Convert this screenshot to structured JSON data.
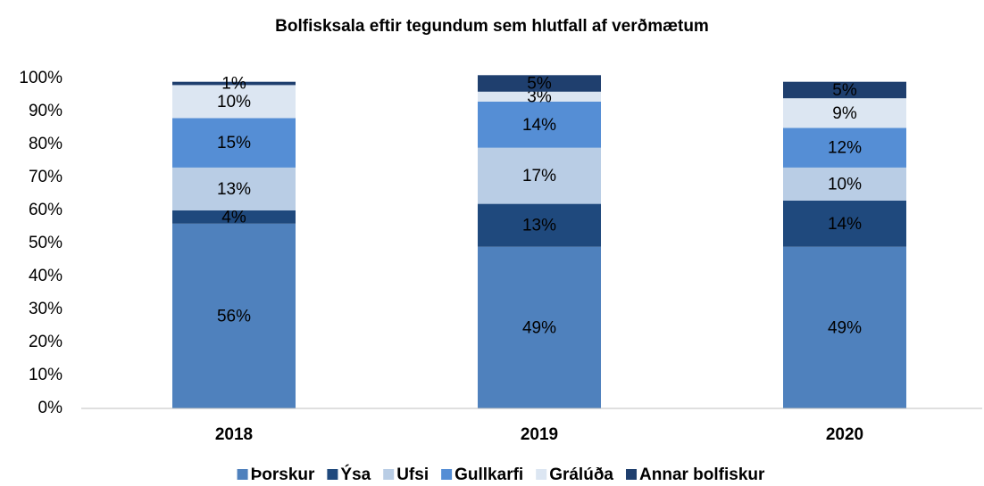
{
  "chart_data": {
    "type": "bar",
    "stacked": true,
    "title": "Bolfisksala eftir tegundum sem hlutfall af verðmætum",
    "categories": [
      "2018",
      "2019",
      "2020"
    ],
    "series": [
      {
        "name": "Þorskur",
        "color": "#4f81bd",
        "label_color": "#ffffff",
        "values": [
          56,
          49,
          49
        ],
        "value_labels": [
          "56%",
          "49%",
          "49%"
        ]
      },
      {
        "name": "Ýsa",
        "color": "#1f497d",
        "label_color": "#ffffff",
        "values": [
          4,
          13,
          14
        ],
        "value_labels": [
          "4%",
          "13%",
          "14%"
        ]
      },
      {
        "name": "Ufsi",
        "color": "#b9cde5",
        "label_color": "#000000",
        "values": [
          13,
          17,
          10
        ],
        "value_labels": [
          "13%",
          "17%",
          "10%"
        ]
      },
      {
        "name": "Gullkarfi",
        "color": "#558ed5",
        "label_color": "#000000",
        "values": [
          15,
          14,
          12
        ],
        "value_labels": [
          "15%",
          "14%",
          "12%"
        ]
      },
      {
        "name": "Grálúða",
        "color": "#dce6f2",
        "label_color": "#000000",
        "values": [
          10,
          3,
          9
        ],
        "value_labels": [
          "10%",
          "3%",
          "9%"
        ]
      },
      {
        "name": "Annar bolfiskur",
        "color": "#1f3f6e",
        "label_color": "#ffffff",
        "values": [
          1,
          5,
          5
        ],
        "value_labels": [
          "1%",
          "5%",
          "5%"
        ]
      }
    ],
    "ylim": [
      0,
      100
    ],
    "yticks": [
      {
        "value": 0,
        "label": "0%"
      },
      {
        "value": 10,
        "label": "10%"
      },
      {
        "value": 20,
        "label": "20%"
      },
      {
        "value": 30,
        "label": "30%"
      },
      {
        "value": 40,
        "label": "40%"
      },
      {
        "value": 50,
        "label": "50%"
      },
      {
        "value": 60,
        "label": "60%"
      },
      {
        "value": 70,
        "label": "70%"
      },
      {
        "value": 80,
        "label": "80%"
      },
      {
        "value": 90,
        "label": "90%"
      },
      {
        "value": 100,
        "label": "100%"
      }
    ],
    "legend": "bottom",
    "grid": false
  }
}
